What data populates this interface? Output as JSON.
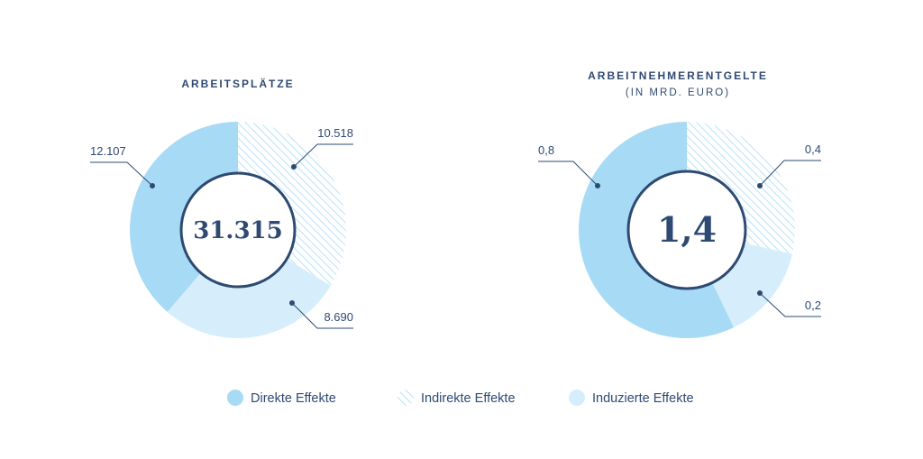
{
  "colors": {
    "direct": "#a6daf5",
    "indirect_hatch": "#a6daf5",
    "induced": "#d6eefb",
    "text": "#2e4a72",
    "ring": "#2e4a72"
  },
  "legend": {
    "direct": "Direkte Effekte",
    "indirect": "Indirekte Effekte",
    "induced": "Induzierte Effekte"
  },
  "chart_data": [
    {
      "type": "pie",
      "title": "ARBEITSPLÄTZE",
      "subtitle": "",
      "total_label": "31.315",
      "slices": [
        {
          "key": "indirect",
          "value": 10518,
          "label": "10.518"
        },
        {
          "key": "induced",
          "value": 8690,
          "label": "8.690"
        },
        {
          "key": "direct",
          "value": 12107,
          "label": "12.107"
        }
      ]
    },
    {
      "type": "pie",
      "title": "ARBEITNEHMERENTGELTE",
      "subtitle": "(IN MRD. EURO)",
      "total_label": "1,4",
      "slices": [
        {
          "key": "indirect",
          "value": 0.4,
          "label": "0,4"
        },
        {
          "key": "induced",
          "value": 0.2,
          "label": "0,2"
        },
        {
          "key": "direct",
          "value": 0.8,
          "label": "0,8"
        }
      ]
    }
  ]
}
